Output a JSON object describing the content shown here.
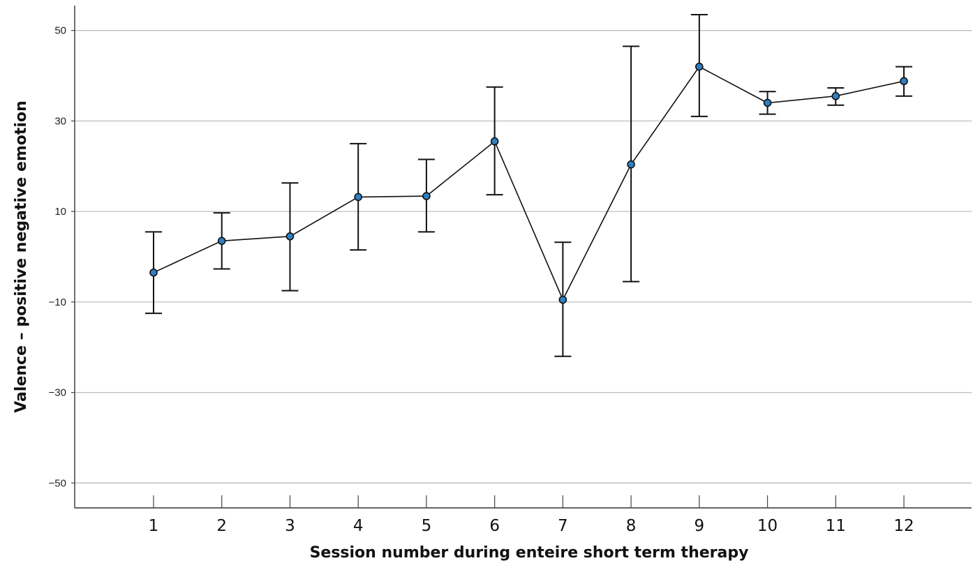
{
  "chart_data": {
    "type": "line",
    "xlabel": "Session number during enteire short term therapy",
    "ylabel": "Valence –  positive negative emotion",
    "categories": [
      "1",
      "2",
      "3",
      "4",
      "5",
      "6",
      "7",
      "8",
      "9",
      "10",
      "11",
      "12"
    ],
    "ylim": [
      -55.5,
      55.5
    ],
    "yticks": [
      "50",
      "30",
      "10",
      "−10",
      "−30",
      "−50"
    ],
    "ytick_values": [
      50,
      30,
      10,
      -10,
      -30,
      -50
    ],
    "grid": "horizontal",
    "series": [
      {
        "values": [
          -3.5,
          3.5,
          4.5,
          13.2,
          13.4,
          25.5,
          -9.5,
          20.4,
          42.0,
          34.0,
          35.5,
          38.8
        ],
        "error_low": [
          -12.5,
          -2.7,
          -7.5,
          1.5,
          5.5,
          13.7,
          -22.0,
          -5.5,
          31.0,
          31.5,
          33.5,
          35.5
        ],
        "error_high": [
          5.5,
          9.7,
          16.3,
          25.0,
          21.5,
          37.5,
          3.2,
          46.5,
          53.5,
          36.5,
          37.3,
          42.0
        ]
      }
    ]
  },
  "colors": {
    "marker_fill": "#2f7fc1",
    "line": "#111111",
    "grid": "#bdbdbd"
  }
}
